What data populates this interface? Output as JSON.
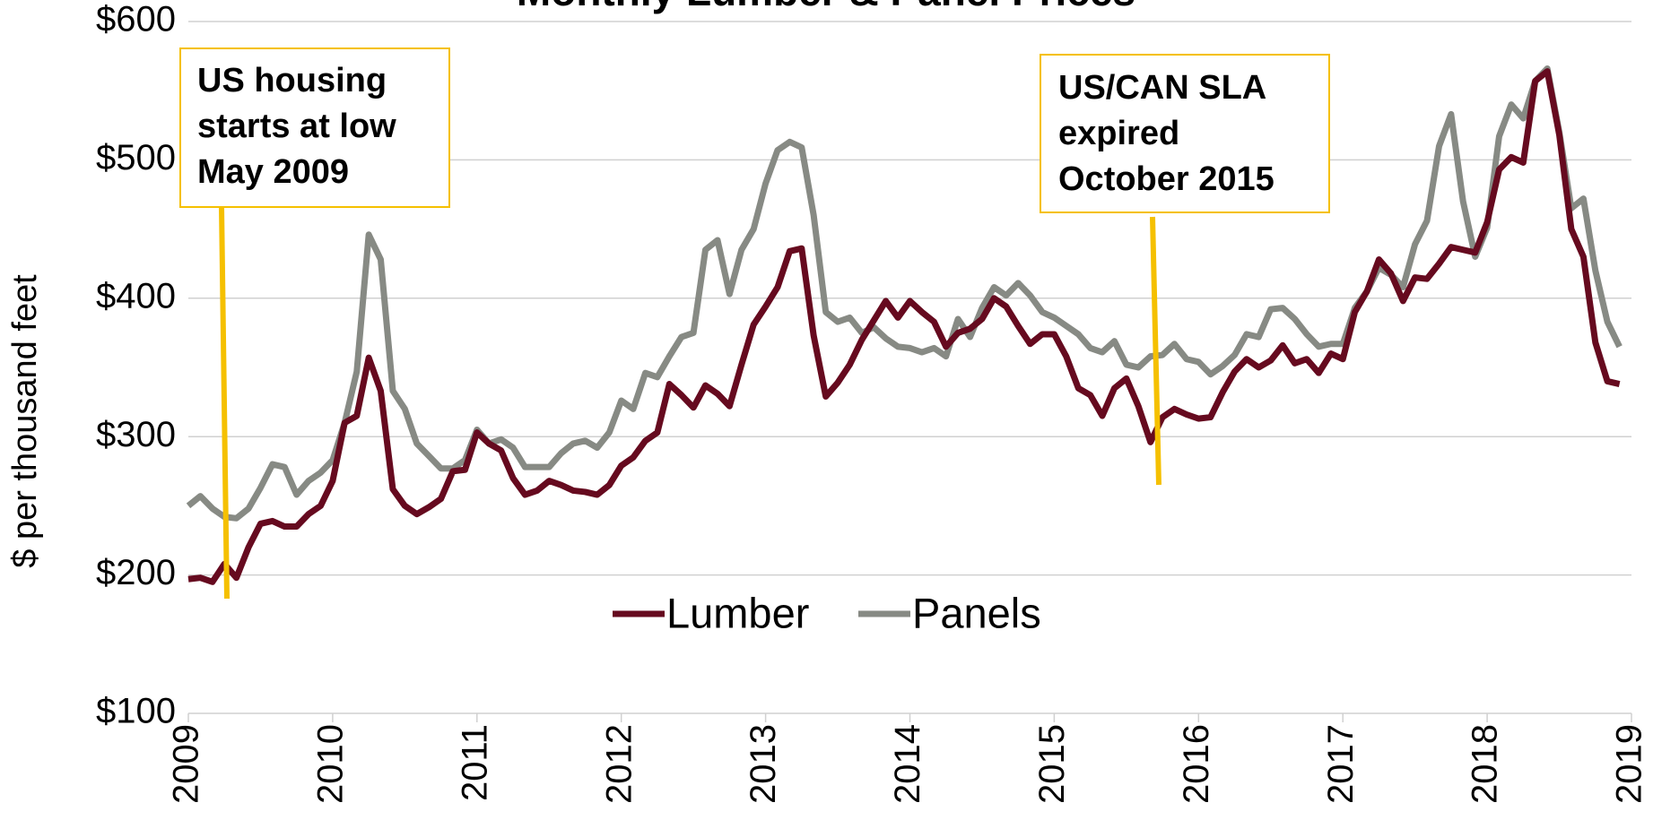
{
  "chart_data": {
    "type": "line",
    "title": "Monthly Lumber & Panel Prices",
    "y_label": "$ per thousand feet",
    "x": [
      2009,
      2009.083,
      2009.167,
      2009.25,
      2009.333,
      2009.417,
      2009.5,
      2009.583,
      2009.667,
      2009.75,
      2009.833,
      2009.917,
      2010,
      2010.083,
      2010.167,
      2010.25,
      2010.333,
      2010.417,
      2010.5,
      2010.583,
      2010.667,
      2010.75,
      2010.833,
      2010.917,
      2011,
      2011.083,
      2011.167,
      2011.25,
      2011.333,
      2011.417,
      2011.5,
      2011.583,
      2011.667,
      2011.75,
      2011.833,
      2011.917,
      2012,
      2012.083,
      2012.167,
      2012.25,
      2012.333,
      2012.417,
      2012.5,
      2012.583,
      2012.667,
      2012.75,
      2012.833,
      2012.917,
      2013,
      2013.083,
      2013.167,
      2013.25,
      2013.333,
      2013.417,
      2013.5,
      2013.583,
      2013.667,
      2013.75,
      2013.833,
      2013.917,
      2014,
      2014.083,
      2014.167,
      2014.25,
      2014.333,
      2014.417,
      2014.5,
      2014.583,
      2014.667,
      2014.75,
      2014.833,
      2014.917,
      2015,
      2015.083,
      2015.167,
      2015.25,
      2015.333,
      2015.417,
      2015.5,
      2015.583,
      2015.667,
      2015.75,
      2015.833,
      2015.917,
      2016,
      2016.083,
      2016.167,
      2016.25,
      2016.333,
      2016.417,
      2016.5,
      2016.583,
      2016.667,
      2016.75,
      2016.833,
      2016.917,
      2017,
      2017.083,
      2017.167,
      2017.25,
      2017.333,
      2017.417,
      2017.5,
      2017.583,
      2017.667,
      2017.75,
      2017.833,
      2017.917,
      2018,
      2018.083,
      2018.167,
      2018.25,
      2018.333,
      2018.417,
      2018.5,
      2018.583,
      2018.667,
      2018.75,
      2018.833,
      2018.917
    ],
    "series": [
      {
        "name": "Lumber",
        "color": "#660a1f",
        "values": [
          197,
          198,
          195,
          208,
          198,
          220,
          237,
          239,
          235,
          235,
          244,
          250,
          268,
          310,
          315,
          357,
          333,
          262,
          250,
          244,
          249,
          255,
          275,
          276,
          303,
          295,
          290,
          270,
          258,
          261,
          268,
          265,
          261,
          260,
          258,
          265,
          279,
          285,
          297,
          303,
          338,
          330,
          321,
          337,
          331,
          322,
          352,
          381,
          394,
          408,
          434,
          436,
          373,
          329,
          339,
          352,
          370,
          384,
          398,
          386,
          398,
          390,
          383,
          365,
          375,
          378,
          385,
          400,
          394,
          380,
          367,
          374,
          374,
          358,
          335,
          330,
          315,
          335,
          342,
          322,
          296,
          314,
          320,
          316,
          313,
          314,
          332,
          347,
          356,
          350,
          355,
          366,
          353,
          356,
          346,
          360,
          356,
          390,
          405,
          428,
          418,
          398,
          415,
          414,
          425,
          437,
          435,
          433,
          455,
          493,
          502,
          498,
          557,
          564,
          518,
          450,
          430,
          368,
          340,
          338
        ]
      },
      {
        "name": "Panels",
        "color": "#878a84",
        "values": [
          250,
          257,
          248,
          242,
          241,
          248,
          263,
          280,
          278,
          258,
          268,
          274,
          283,
          310,
          347,
          446,
          428,
          333,
          320,
          295,
          286,
          277,
          277,
          283,
          305,
          295,
          298,
          292,
          278,
          278,
          278,
          288,
          295,
          297,
          292,
          303,
          326,
          320,
          346,
          343,
          358,
          372,
          375,
          435,
          442,
          403,
          435,
          450,
          483,
          507,
          513,
          509,
          460,
          390,
          383,
          386,
          375,
          379,
          371,
          365,
          364,
          361,
          364,
          358,
          385,
          372,
          393,
          408,
          402,
          411,
          402,
          390,
          386,
          380,
          374,
          364,
          361,
          369,
          352,
          350,
          358,
          359,
          367,
          356,
          354,
          345,
          351,
          359,
          374,
          372,
          392,
          393,
          385,
          374,
          365,
          367,
          367,
          393,
          405,
          422,
          417,
          408,
          439,
          456,
          510,
          533,
          470,
          430,
          451,
          517,
          540,
          530,
          557,
          566,
          520,
          465,
          472,
          420,
          383,
          365
        ]
      }
    ],
    "xlim": [
      2009,
      2019
    ],
    "xticks": [
      2009,
      2010,
      2011,
      2012,
      2013,
      2014,
      2015,
      2016,
      2017,
      2018,
      2019
    ],
    "ylim": [
      100,
      600
    ],
    "yticks": [
      {
        "value": 100,
        "label": "$100"
      },
      {
        "value": 200,
        "label": "$200"
      },
      {
        "value": 300,
        "label": "$300"
      },
      {
        "value": 400,
        "label": "$400"
      },
      {
        "value": 500,
        "label": "$500"
      },
      {
        "value": 600,
        "label": "$600"
      }
    ],
    "grid": true,
    "annotations": [
      {
        "lines": [
          "US housing",
          "starts at low",
          "May 2009"
        ]
      },
      {
        "lines": [
          "US/CAN SLA",
          "expired",
          "October 2015"
        ]
      }
    ]
  }
}
